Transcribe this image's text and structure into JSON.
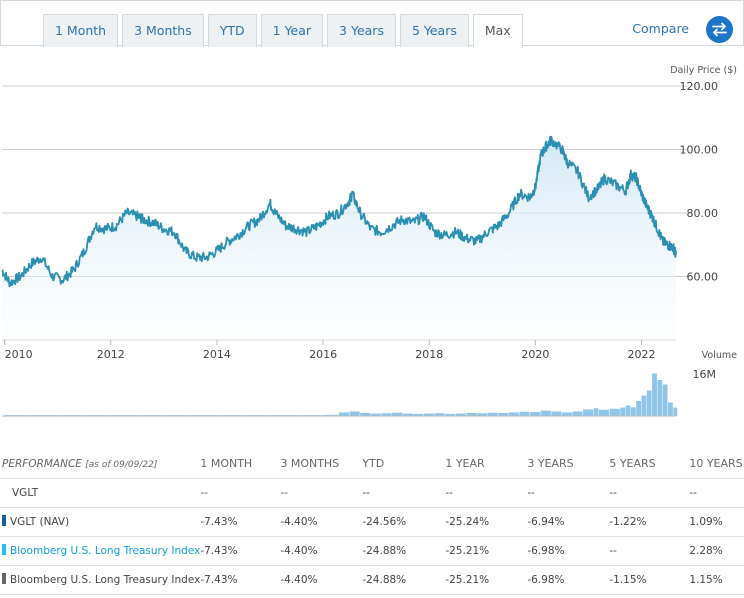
{
  "tabs": [
    {
      "label": "1 Month",
      "active": false
    },
    {
      "label": "3 Months",
      "active": false
    },
    {
      "label": "YTD",
      "active": false
    },
    {
      "label": "1 Year",
      "active": false
    },
    {
      "label": "3 Years",
      "active": false
    },
    {
      "label": "5 Years",
      "active": false
    },
    {
      "label": "Max",
      "active": true
    }
  ],
  "compare_label": "Compare",
  "icons": {
    "compare": "swap-arrows-icon"
  },
  "colors": {
    "price_line": "#2a8fb0",
    "volume_bar": "#8ec5e8",
    "gridline": "#cccccc"
  },
  "chart_data": {
    "type": "line",
    "price_axis_label": "Daily Price ($)",
    "y_ticks": [
      "120.00",
      "100.00",
      "80.00",
      "60.00"
    ],
    "ylim": [
      40,
      120
    ],
    "x_ticks": [
      "2010",
      "2012",
      "2014",
      "2016",
      "2018",
      "2020",
      "2022"
    ],
    "xlim": [
      2009.95,
      2022.65
    ],
    "price_series": {
      "x": [
        2009.95,
        2010.1,
        2010.3,
        2010.5,
        2010.7,
        2010.9,
        2011.1,
        2011.3,
        2011.5,
        2011.7,
        2011.9,
        2012.1,
        2012.3,
        2012.5,
        2012.6,
        2012.8,
        2013.0,
        2013.2,
        2013.4,
        2013.6,
        2013.8,
        2014.0,
        2014.2,
        2014.4,
        2014.6,
        2014.8,
        2015.0,
        2015.1,
        2015.3,
        2015.5,
        2015.7,
        2015.9,
        2016.1,
        2016.3,
        2016.5,
        2016.55,
        2016.7,
        2016.9,
        2017.1,
        2017.3,
        2017.5,
        2017.7,
        2017.9,
        2018.1,
        2018.3,
        2018.5,
        2018.7,
        2018.9,
        2019.1,
        2019.3,
        2019.5,
        2019.7,
        2019.9,
        2020.0,
        2020.1,
        2020.2,
        2020.3,
        2020.5,
        2020.6,
        2020.8,
        2021.0,
        2021.2,
        2021.3,
        2021.5,
        2021.7,
        2021.8,
        2021.9,
        2022.0,
        2022.1,
        2022.2,
        2022.3,
        2022.4,
        2022.5,
        2022.6,
        2022.65
      ],
      "y": [
        62,
        58,
        60,
        64,
        66,
        60,
        59,
        62,
        68,
        76,
        75,
        76,
        80,
        79,
        78,
        77,
        75,
        74,
        68,
        66,
        66,
        68,
        71,
        73,
        76,
        78,
        83,
        80,
        76,
        75,
        74,
        76,
        79,
        80,
        84,
        86,
        80,
        75,
        74,
        76,
        78,
        77,
        79,
        74,
        73,
        74,
        72,
        71,
        74,
        76,
        80,
        86,
        85,
        88,
        98,
        101,
        103,
        100,
        96,
        93,
        85,
        88,
        91,
        89,
        87,
        92,
        91,
        86,
        82,
        79,
        75,
        71,
        70,
        69,
        67
      ]
    },
    "volume_axis_label": "Volume",
    "volume_tick": "16M",
    "volume_ylim": [
      0,
      16
    ],
    "volume_series": {
      "x": [
        2010.0,
        2010.5,
        2011.0,
        2011.5,
        2012.0,
        2012.5,
        2013.0,
        2013.5,
        2014.0,
        2014.5,
        2015.0,
        2015.5,
        2016.0,
        2016.3,
        2016.5,
        2016.7,
        2016.9,
        2017.1,
        2017.3,
        2017.5,
        2017.7,
        2017.9,
        2018.1,
        2018.3,
        2018.5,
        2018.7,
        2018.9,
        2019.1,
        2019.3,
        2019.5,
        2019.7,
        2019.9,
        2020.1,
        2020.3,
        2020.5,
        2020.7,
        2020.9,
        2021.1,
        2021.2,
        2021.4,
        2021.6,
        2021.7,
        2021.8,
        2021.9,
        2022.0,
        2022.1,
        2022.2,
        2022.3,
        2022.4,
        2022.5,
        2022.6
      ],
      "y": [
        0.3,
        0.3,
        0.3,
        0.3,
        0.3,
        0.3,
        0.3,
        0.3,
        0.3,
        0.3,
        0.3,
        0.3,
        0.4,
        1.2,
        1.5,
        1.0,
        0.8,
        0.9,
        1.1,
        0.8,
        0.7,
        0.8,
        0.9,
        0.7,
        0.8,
        1.0,
        0.9,
        1.1,
        1.0,
        1.2,
        1.4,
        1.3,
        1.8,
        1.5,
        1.2,
        1.5,
        2.2,
        2.6,
        2.1,
        2.4,
        2.8,
        3.5,
        2.9,
        5.0,
        6.8,
        8.5,
        14.2,
        12.0,
        10.5,
        4.5,
        2.8
      ]
    }
  },
  "performance": {
    "title": "PERFORMANCE",
    "as_of": "[as of 09/09/22]",
    "columns": [
      "1 MONTH",
      "3 MONTHS",
      "YTD",
      "1 YEAR",
      "3 YEARS",
      "5 YEARS",
      "10 YEARS"
    ],
    "rows": [
      {
        "name": "VGLT",
        "swatch": "",
        "link": false,
        "values": [
          "--",
          "--",
          "--",
          "--",
          "--",
          "--",
          "--"
        ]
      },
      {
        "name": "VGLT (NAV)",
        "swatch": "#1a5fa8",
        "link": false,
        "values": [
          "-7.43%",
          "-4.40%",
          "-24.56%",
          "-25.24%",
          "-6.94%",
          "-1.22%",
          "1.09%"
        ]
      },
      {
        "name": "Bloomberg U.S. Long Treasury Index",
        "swatch": "#25c2ea",
        "link": true,
        "values": [
          "-7.43%",
          "-4.40%",
          "-24.88%",
          "-25.21%",
          "-6.98%",
          "--",
          "2.28%"
        ]
      },
      {
        "name": "Bloomberg U.S. Long Treasury Index",
        "swatch": "#666666",
        "link": false,
        "values": [
          "-7.43%",
          "-4.40%",
          "-24.88%",
          "-25.21%",
          "-6.98%",
          "-1.15%",
          "1.15%"
        ]
      }
    ]
  }
}
